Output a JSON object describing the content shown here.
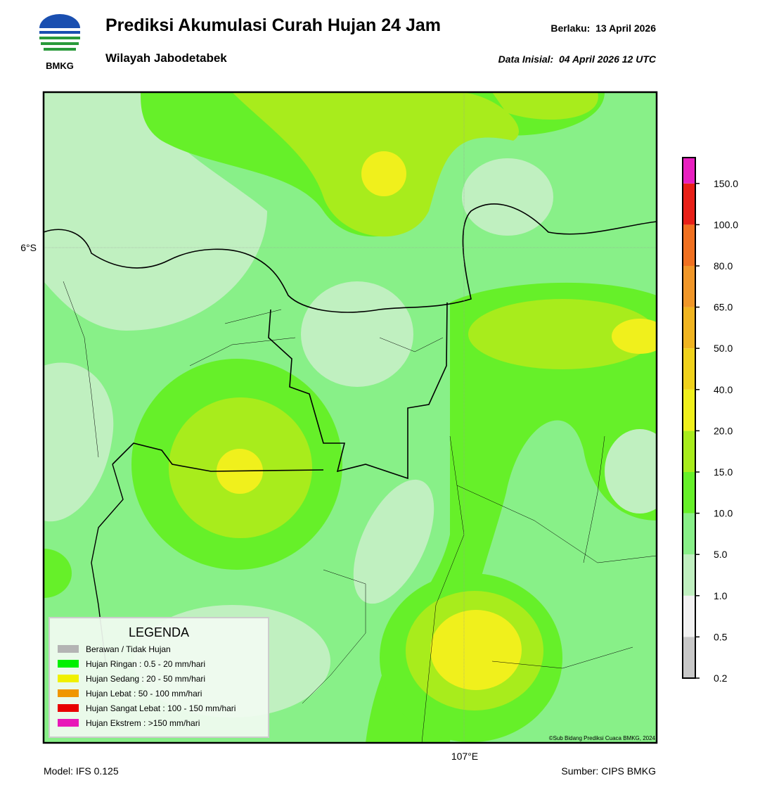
{
  "header": {
    "logo": "BMKG",
    "title": "Prediksi Akumulasi Curah Hujan 24 Jam",
    "subtitle": "Wilayah Jabodetabek",
    "valid": "Berlaku:  13 April 2026",
    "init": "Data Inisial:  04 April 2026 12 UTC"
  },
  "map": {
    "lat_label": "6°S",
    "lon_label": "107°E",
    "credit": "©Sub Bidang Prediksi Cuaca BMKG, 2024"
  },
  "legend": {
    "title": "LEGENDA",
    "items": [
      {
        "label": "Berawan / Tidak Hujan",
        "color": "#b4b4b4"
      },
      {
        "label": "Hujan Ringan : 0.5 - 20 mm/hari",
        "color": "#00f000"
      },
      {
        "label": "Hujan Sedang : 20 - 50 mm/hari",
        "color": "#f0f000"
      },
      {
        "label": "Hujan Lebat : 50 - 100 mm/hari",
        "color": "#f09600"
      },
      {
        "label": "Hujan Sangat Lebat : 100 - 150 mm/hari",
        "color": "#e80000"
      },
      {
        "label": "Hujan Ekstrem : >150 mm/hari",
        "color": "#e818b8"
      }
    ]
  },
  "colorbar": {
    "ticks": [
      "0.2",
      "0.5",
      "1.0",
      "5.0",
      "10.0",
      "15.0",
      "20.0",
      "40.0",
      "50.0",
      "65.0",
      "80.0",
      "100.0",
      "150.0"
    ],
    "colors": [
      "#c8c8c8",
      "#f2f2f2",
      "#c0f0c0",
      "#88f088",
      "#66f029",
      "#a8ec1c",
      "#f0f01c",
      "#f0d21c",
      "#f0b420",
      "#f09628",
      "#f07020",
      "#e82018",
      "#e820c0"
    ]
  },
  "footer": {
    "model": "Model: IFS 0.125",
    "source": "Sumber: CIPS BMKG"
  }
}
